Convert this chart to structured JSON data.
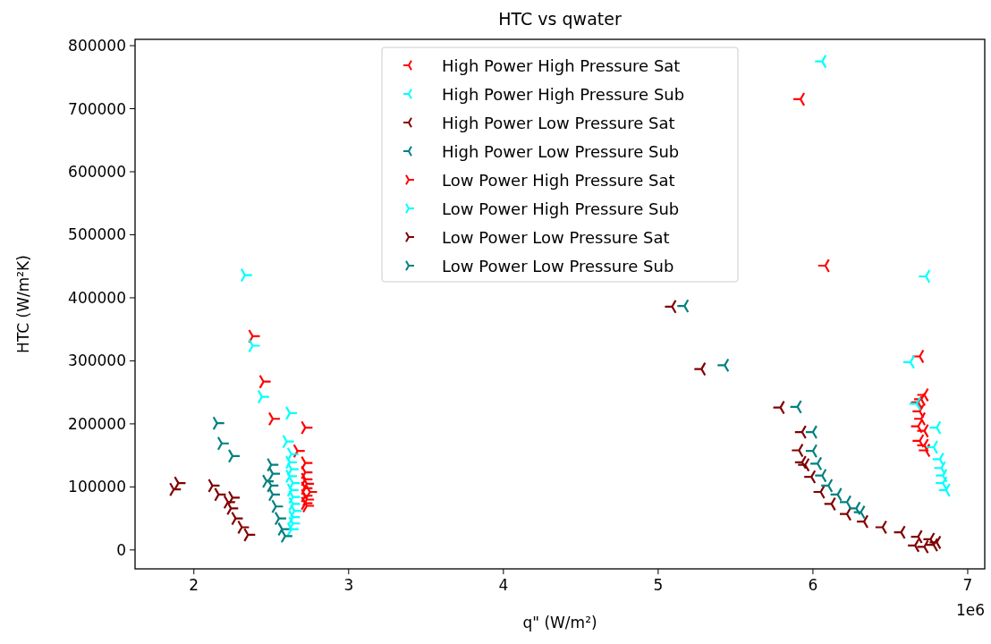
{
  "chart_data": {
    "type": "scatter",
    "title": "HTC vs qwater",
    "xlabel": "q\" (W/m²)",
    "ylabel": "HTC (W/m²K)",
    "annotations": [
      "1e6"
    ],
    "xlim": [
      1.62,
      7.11
    ],
    "xticks": [
      2,
      3,
      4,
      5,
      6,
      7
    ],
    "ylim": [
      -30000,
      810000
    ],
    "yticks": [
      0,
      100000,
      200000,
      300000,
      400000,
      500000,
      600000,
      700000,
      800000
    ],
    "grid": false,
    "legend": "top",
    "marker": "cross",
    "series": [
      {
        "name": "High Power High Pressure Sat",
        "color": "#ff0000",
        "x": [
          5.92,
          6.08,
          6.69,
          6.7,
          6.72,
          6.68,
          6.69,
          6.7,
          6.68,
          6.72,
          6.69,
          6.72,
          6.73
        ],
        "values": [
          715000,
          451000,
          307000,
          239000,
          246000,
          234000,
          220000,
          208000,
          196000,
          189000,
          173000,
          166000,
          158000
        ]
      },
      {
        "name": "High Power High Pressure Sub",
        "color": "#00ffff",
        "x": [
          6.06,
          6.73,
          6.63,
          6.67,
          6.8,
          6.78,
          6.82,
          6.83,
          6.84,
          6.84,
          6.86
        ],
        "values": [
          775000,
          434000,
          298000,
          232000,
          194000,
          163000,
          144000,
          130000,
          118000,
          106000,
          95000
        ]
      },
      {
        "name": "High Power Low Pressure Sat",
        "color": "#800000",
        "x": [
          5.09,
          5.28,
          5.79,
          5.93,
          5.91,
          5.93,
          5.95,
          5.99,
          6.05,
          6.12,
          6.22,
          6.33,
          6.45,
          6.57,
          6.68,
          6.76,
          6.8,
          6.66,
          6.72,
          6.78
        ],
        "values": [
          386000,
          287000,
          226000,
          187000,
          158000,
          139000,
          135000,
          116000,
          92000,
          73000,
          57000,
          45000,
          36000,
          28000,
          21000,
          17000,
          12000,
          7000,
          5000,
          8000
        ]
      },
      {
        "name": "High Power Low Pressure Sub",
        "color": "#008080",
        "x": [
          5.17,
          5.43,
          5.9,
          6.0,
          6.0,
          6.03,
          6.06,
          6.1,
          6.16,
          6.22,
          6.28,
          6.31
        ],
        "values": [
          387000,
          293000,
          227000,
          187000,
          157000,
          137000,
          118000,
          102000,
          88000,
          76000,
          66000,
          60000
        ]
      },
      {
        "name": "Low Power High Pressure Sat",
        "color": "#ff0000",
        "x": [
          2.38,
          2.45,
          2.51,
          2.72,
          2.67,
          2.72,
          2.72,
          2.72,
          2.73,
          2.72,
          2.75,
          2.72,
          2.73,
          2.72,
          2.73
        ],
        "values": [
          339000,
          267000,
          208000,
          194000,
          157000,
          138000,
          123000,
          112000,
          105000,
          98000,
          92000,
          86000,
          80000,
          74000,
          70000
        ]
      },
      {
        "name": "Low Power High Pressure Sub",
        "color": "#00ffff",
        "x": [
          2.33,
          2.38,
          2.44,
          2.62,
          2.6,
          2.63,
          2.62,
          2.63,
          2.62,
          2.64,
          2.63,
          2.64,
          2.64,
          2.65,
          2.64,
          2.64,
          2.63
        ],
        "values": [
          436000,
          324000,
          243000,
          217000,
          172000,
          152000,
          139000,
          128000,
          117000,
          106000,
          95000,
          84000,
          73000,
          62000,
          52000,
          42000,
          33000
        ]
      },
      {
        "name": "Low Power Low Pressure Sat",
        "color": "#800000",
        "x": [
          1.9,
          1.87,
          2.12,
          2.16,
          2.25,
          2.22,
          2.24,
          2.27,
          2.31,
          2.35
        ],
        "values": [
          106000,
          96000,
          102000,
          88000,
          83000,
          76000,
          66000,
          50000,
          36000,
          24000
        ]
      },
      {
        "name": "Low Power Low Pressure Sub",
        "color": "#008080",
        "x": [
          2.15,
          2.18,
          2.25,
          2.5,
          2.51,
          2.47,
          2.5,
          2.51,
          2.53,
          2.55,
          2.57,
          2.59
        ],
        "values": [
          201000,
          169000,
          149000,
          135000,
          121000,
          109000,
          102000,
          88000,
          69000,
          50000,
          33000,
          22000
        ]
      }
    ]
  }
}
